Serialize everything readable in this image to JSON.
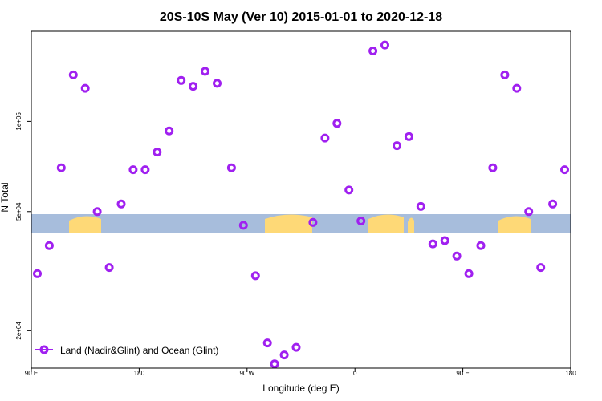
{
  "chart_data": {
    "type": "scatter",
    "title": "20S-10S May (Ver 10)   2015-01-01 to 2020-12-18",
    "xlabel": "Longitude (deg E)",
    "ylabel": "N Total",
    "x_scale": "linear",
    "y_scale": "log",
    "xlim": [
      90,
      540
    ],
    "ylim": [
      15000,
      200000
    ],
    "x_ticks": [
      {
        "value": 90,
        "label": "90 E"
      },
      {
        "value": 180,
        "label": "180"
      },
      {
        "value": 270,
        "label": "90 W"
      },
      {
        "value": 360,
        "label": "0"
      },
      {
        "value": 450,
        "label": "90 E"
      },
      {
        "value": 540,
        "label": "180"
      }
    ],
    "y_ticks": [
      {
        "value": 20000,
        "label": "2e+04"
      },
      {
        "value": 50000,
        "label": "5e+04"
      },
      {
        "value": 100000,
        "label": "1e+05"
      }
    ],
    "series": [
      {
        "name": "Land (Nadir&Glint) and Ocean (Glint)",
        "color": "#a020f0",
        "marker": "open-circle",
        "points": [
          [
            95,
            31000
          ],
          [
            105,
            38500
          ],
          [
            115,
            70000
          ],
          [
            125,
            143000
          ],
          [
            135,
            129000
          ],
          [
            145,
            50000
          ],
          [
            155,
            32500
          ],
          [
            165,
            53000
          ],
          [
            175,
            69000
          ],
          [
            185,
            69000
          ],
          [
            195,
            79000
          ],
          [
            205,
            93000
          ],
          [
            215,
            137000
          ],
          [
            225,
            131000
          ],
          [
            235,
            147000
          ],
          [
            245,
            134000
          ],
          [
            257,
            70000
          ],
          [
            267,
            45000
          ],
          [
            277,
            30500
          ],
          [
            287,
            18200
          ],
          [
            293,
            15500
          ],
          [
            301,
            16600
          ],
          [
            311,
            17600
          ],
          [
            325,
            46000
          ],
          [
            335,
            88000
          ],
          [
            345,
            98500
          ],
          [
            355,
            59000
          ],
          [
            365,
            46500
          ],
          [
            375,
            172000
          ],
          [
            385,
            180000
          ],
          [
            395,
            83000
          ],
          [
            405,
            89000
          ],
          [
            415,
            52000
          ],
          [
            425,
            39000
          ],
          [
            435,
            40000
          ],
          [
            445,
            35500
          ],
          [
            455,
            31000
          ],
          [
            465,
            38500
          ],
          [
            475,
            70000
          ],
          [
            485,
            143000
          ],
          [
            495,
            129000
          ],
          [
            505,
            50000
          ],
          [
            515,
            32500
          ],
          [
            525,
            53000
          ],
          [
            535,
            69000
          ]
        ]
      }
    ],
    "legend": {
      "position": "bottom-left"
    },
    "grid": false,
    "background_bands": [
      {
        "name": "ocean",
        "color": "#a7bddc"
      },
      {
        "name": "land",
        "color": "#fed977"
      }
    ]
  }
}
